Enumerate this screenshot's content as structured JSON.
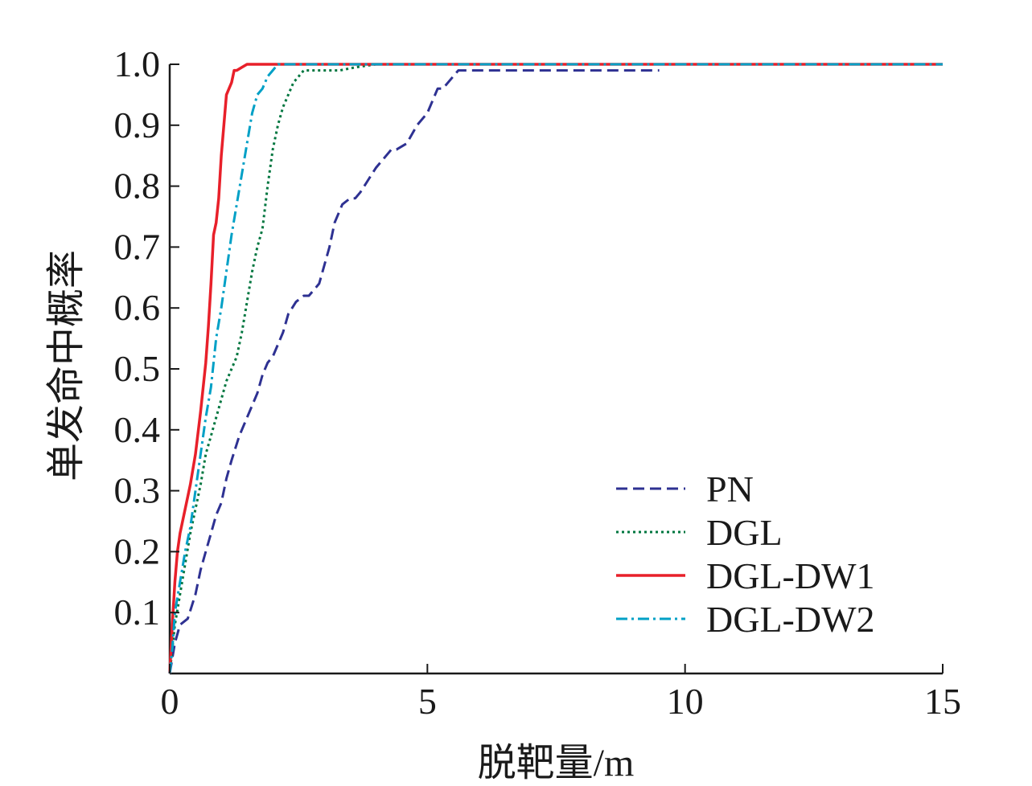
{
  "chart_data": {
    "type": "line",
    "title": "",
    "xlabel": "脱靶量/m",
    "ylabel": "单发命中概率",
    "xlim": [
      0,
      15
    ],
    "ylim": [
      0,
      1.0
    ],
    "xticks": [
      "0",
      "5",
      "10",
      "15"
    ],
    "yticks": [
      "0.1",
      "0.2",
      "0.3",
      "0.4",
      "0.5",
      "0.6",
      "0.7",
      "0.8",
      "0.9",
      "1.0"
    ],
    "grid": false,
    "legend_position": "bottom-right",
    "series": [
      {
        "name": "PN",
        "color": "#2e3192",
        "style": "dashed",
        "x": [
          0,
          0.1,
          0.2,
          0.35,
          0.5,
          0.6,
          0.7,
          0.8,
          0.9,
          1.0,
          1.1,
          1.2,
          1.35,
          1.5,
          1.6,
          1.7,
          1.8,
          1.9,
          2.0,
          2.1,
          2.2,
          2.3,
          2.45,
          2.6,
          2.7,
          2.8,
          2.9,
          3.0,
          3.1,
          3.2,
          3.35,
          3.5,
          3.6,
          3.7,
          3.85,
          4.0,
          4.1,
          4.2,
          4.3,
          4.4,
          4.6,
          4.8,
          5.0,
          5.1,
          5.2,
          5.3,
          5.4,
          5.6,
          5.7,
          5.8,
          6.0,
          7.0,
          8.0,
          9.5
        ],
        "y": [
          0.0,
          0.05,
          0.08,
          0.09,
          0.13,
          0.17,
          0.2,
          0.23,
          0.26,
          0.28,
          0.32,
          0.35,
          0.39,
          0.42,
          0.44,
          0.46,
          0.49,
          0.51,
          0.52,
          0.54,
          0.56,
          0.59,
          0.61,
          0.62,
          0.62,
          0.63,
          0.64,
          0.67,
          0.7,
          0.74,
          0.77,
          0.78,
          0.78,
          0.79,
          0.81,
          0.83,
          0.84,
          0.85,
          0.86,
          0.86,
          0.87,
          0.9,
          0.92,
          0.94,
          0.96,
          0.96,
          0.97,
          0.99,
          0.99,
          0.99,
          0.99,
          0.99,
          0.99,
          0.99
        ]
      },
      {
        "name": "DGL",
        "color": "#00763f",
        "style": "dotted",
        "x": [
          0,
          0.05,
          0.1,
          0.2,
          0.3,
          0.4,
          0.5,
          0.6,
          0.7,
          0.8,
          0.9,
          1.0,
          1.1,
          1.2,
          1.3,
          1.4,
          1.5,
          1.6,
          1.7,
          1.8,
          1.9,
          2.0,
          2.1,
          2.2,
          2.3,
          2.4,
          2.5,
          2.6,
          2.8,
          3.0,
          3.3,
          3.6,
          4.0,
          6.0,
          10.0,
          15.0
        ],
        "y": [
          0.0,
          0.04,
          0.08,
          0.13,
          0.18,
          0.23,
          0.27,
          0.31,
          0.36,
          0.39,
          0.42,
          0.45,
          0.48,
          0.5,
          0.52,
          0.56,
          0.61,
          0.66,
          0.7,
          0.73,
          0.8,
          0.86,
          0.9,
          0.93,
          0.95,
          0.97,
          0.98,
          0.99,
          0.99,
          0.99,
          0.99,
          0.995,
          1.0,
          1.0,
          1.0,
          1.0
        ]
      },
      {
        "name": "DGL-DW1",
        "color": "#e8202a",
        "style": "solid",
        "x": [
          0,
          0.05,
          0.1,
          0.15,
          0.2,
          0.3,
          0.4,
          0.5,
          0.6,
          0.7,
          0.75,
          0.8,
          0.85,
          0.9,
          0.95,
          1.0,
          1.05,
          1.1,
          1.15,
          1.2,
          1.25,
          1.3,
          1.4,
          1.5,
          1.6,
          1.7,
          2.0,
          5.0,
          10.0,
          15.0
        ],
        "y": [
          0.0,
          0.08,
          0.15,
          0.2,
          0.23,
          0.27,
          0.31,
          0.36,
          0.43,
          0.51,
          0.57,
          0.64,
          0.72,
          0.74,
          0.78,
          0.85,
          0.9,
          0.95,
          0.96,
          0.97,
          0.99,
          0.99,
          0.995,
          1.0,
          1.0,
          1.0,
          1.0,
          1.0,
          1.0,
          1.0
        ]
      },
      {
        "name": "DGL-DW2",
        "color": "#00a0c6",
        "style": "dashdot",
        "x": [
          0,
          0.05,
          0.1,
          0.2,
          0.3,
          0.4,
          0.5,
          0.6,
          0.7,
          0.8,
          0.9,
          1.0,
          1.1,
          1.2,
          1.3,
          1.4,
          1.5,
          1.6,
          1.7,
          1.8,
          1.9,
          2.0,
          2.1,
          2.2,
          2.5,
          3.0,
          5.0,
          10.0,
          15.0
        ],
        "y": [
          0.0,
          0.04,
          0.1,
          0.15,
          0.2,
          0.24,
          0.3,
          0.36,
          0.42,
          0.47,
          0.55,
          0.6,
          0.66,
          0.72,
          0.77,
          0.82,
          0.87,
          0.92,
          0.95,
          0.96,
          0.98,
          0.99,
          1.0,
          1.0,
          1.0,
          1.0,
          1.0,
          1.0,
          1.0
        ]
      }
    ]
  }
}
